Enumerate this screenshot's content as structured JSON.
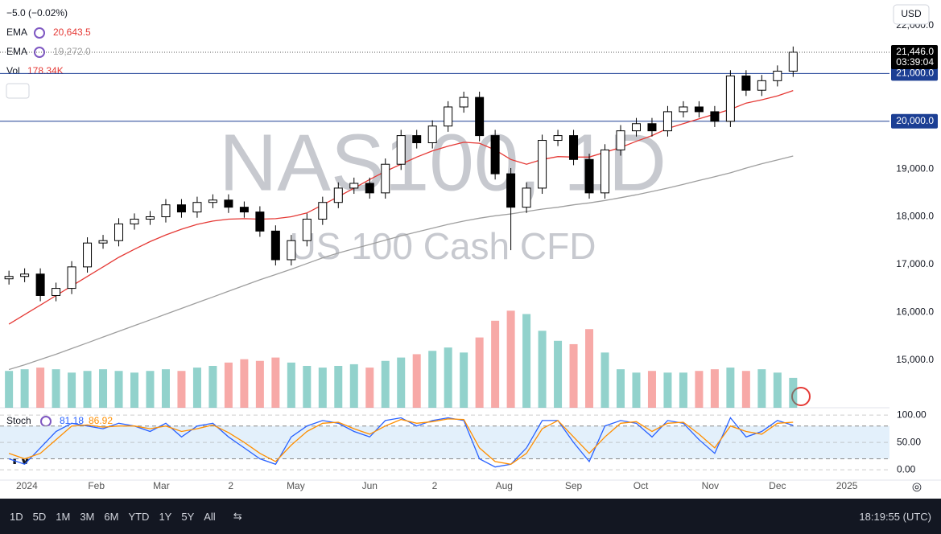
{
  "chart_data": {
    "type": "candlestick",
    "title": "NAS100, 1D",
    "subtitle": "US 100 Cash CFD",
    "change": "−5.0 (−0.02%)",
    "currency": "USD",
    "x": [
      4,
      11,
      18,
      25,
      32,
      39,
      46,
      53,
      60,
      67,
      74,
      81,
      88,
      95,
      102,
      109,
      116,
      123,
      130,
      137,
      144,
      151,
      158,
      165,
      172,
      179,
      186,
      193,
      200,
      207,
      214,
      221,
      228,
      235,
      242,
      249,
      256,
      263,
      270,
      277,
      284,
      291,
      298,
      305,
      312,
      319,
      326,
      333,
      340,
      347,
      354
    ],
    "xlim": [
      0,
      397
    ],
    "xticks": [
      {
        "value": 12,
        "label": "2024"
      },
      {
        "value": 43,
        "label": "Feb"
      },
      {
        "value": 72,
        "label": "Mar"
      },
      {
        "value": 103,
        "label": "2"
      },
      {
        "value": 132,
        "label": "May"
      },
      {
        "value": 165,
        "label": "Jun"
      },
      {
        "value": 194,
        "label": "2"
      },
      {
        "value": 225,
        "label": "Aug"
      },
      {
        "value": 256,
        "label": "Sep"
      },
      {
        "value": 286,
        "label": "Oct"
      },
      {
        "value": 317,
        "label": "Nov"
      },
      {
        "value": 347,
        "label": "Dec"
      },
      {
        "value": 378,
        "label": "2025"
      }
    ],
    "open": [
      16700,
      16750,
      16800,
      16350,
      16500,
      16950,
      17450,
      17500,
      17850,
      17950,
      18000,
      18250,
      18100,
      18300,
      18350,
      18200,
      18100,
      17700,
      17100,
      17500,
      17950,
      18300,
      18600,
      18700,
      18500,
      19100,
      19700,
      19550,
      19900,
      20300,
      20500,
      19700,
      18900,
      18200,
      18600,
      19600,
      19700,
      19200,
      18500,
      19400,
      19800,
      19950,
      19800,
      20200,
      20300,
      20200,
      20000,
      20950,
      20650,
      20850,
      21050
    ],
    "high": [
      16870,
      16920,
      16920,
      16620,
      17070,
      17570,
      17620,
      17970,
      18070,
      18120,
      18370,
      18370,
      18420,
      18470,
      18470,
      18320,
      18220,
      17820,
      17620,
      18070,
      18420,
      18720,
      18820,
      18820,
      19220,
      19820,
      19820,
      20020,
      20420,
      20620,
      20620,
      19820,
      19020,
      18720,
      19720,
      19820,
      19820,
      19320,
      19520,
      19920,
      20070,
      20070,
      20320,
      20420,
      20420,
      20320,
      21070,
      21070,
      20970,
      21170,
      21566
    ],
    "low": [
      16580,
      16630,
      16230,
      16230,
      16380,
      16830,
      17330,
      17380,
      17730,
      17830,
      17880,
      17980,
      17980,
      18180,
      18080,
      17980,
      17580,
      16980,
      16980,
      17380,
      17830,
      18180,
      18480,
      18380,
      18380,
      18980,
      19430,
      19430,
      19780,
      20180,
      19580,
      18780,
      17300,
      18080,
      18480,
      19480,
      19080,
      18380,
      18380,
      19280,
      19680,
      19680,
      19680,
      20080,
      20080,
      19880,
      19880,
      20530,
      20530,
      20730,
      20930
    ],
    "close": [
      16750,
      16800,
      16350,
      16500,
      16950,
      17450,
      17500,
      17850,
      17950,
      18000,
      18250,
      18100,
      18300,
      18350,
      18200,
      18100,
      17700,
      17100,
      17500,
      17950,
      18300,
      18600,
      18700,
      18500,
      19100,
      19700,
      19550,
      19900,
      20300,
      20500,
      19700,
      18900,
      18200,
      18600,
      19600,
      19700,
      19200,
      18500,
      19400,
      19800,
      19950,
      19800,
      20200,
      20300,
      20200,
      20000,
      20950,
      20650,
      20850,
      21050,
      21446
    ],
    "up_color": "#ffffff",
    "down_color": "#000000",
    "ylim": [
      14000,
      22540
    ],
    "yticks": [
      {
        "value": 15000,
        "label": "15,000.0"
      },
      {
        "value": 16000,
        "label": "16,000.0"
      },
      {
        "value": 17000,
        "label": "17,000.0"
      },
      {
        "value": 18000,
        "label": "18,000.0"
      },
      {
        "value": 19000,
        "label": "19,000.0"
      },
      {
        "value": 22000,
        "label": "22,000.0"
      }
    ],
    "horizontal_lines": [
      {
        "value": 21000,
        "label": "21,000.0"
      },
      {
        "value": 20000,
        "label": "20,000.0"
      }
    ],
    "line_color": "#1c3f94",
    "last_price": {
      "value": 21446,
      "label": "21,446.0"
    },
    "countdown": "03:39:04",
    "ema": [
      {
        "name": "EMA",
        "color": "#e53935",
        "current_label": "20,643.5",
        "values": [
          15750,
          15950,
          16150,
          16350,
          16550,
          16750,
          16950,
          17150,
          17320,
          17480,
          17620,
          17740,
          17840,
          17910,
          17950,
          17960,
          17950,
          17960,
          18000,
          18080,
          18250,
          18420,
          18600,
          18780,
          18950,
          19100,
          19250,
          19380,
          19480,
          19560,
          19540,
          19400,
          19200,
          19100,
          19200,
          19260,
          19250,
          19250,
          19350,
          19450,
          19580,
          19700,
          19850,
          19950,
          20050,
          20150,
          20250,
          20380,
          20450,
          20530,
          20643.5
        ]
      },
      {
        "name": "EMA",
        "color": "#9e9e9e",
        "current_label": "19,272.0",
        "values": [
          14800,
          14900,
          15010,
          15120,
          15240,
          15360,
          15480,
          15600,
          15720,
          15840,
          15960,
          16080,
          16200,
          16320,
          16440,
          16560,
          16680,
          16790,
          16900,
          17020,
          17140,
          17240,
          17330,
          17420,
          17510,
          17600,
          17680,
          17760,
          17840,
          17910,
          17970,
          18020,
          18060,
          18110,
          18160,
          18200,
          18250,
          18290,
          18340,
          18400,
          18460,
          18530,
          18600,
          18680,
          18760,
          18840,
          18920,
          19020,
          19110,
          19190,
          19272
        ]
      }
    ],
    "volume": {
      "name": "Vol",
      "current_label": "178.34K",
      "label_color": "#e53935",
      "ylim": [
        0,
        2437
      ],
      "up_color": "rgba(38,166,154,0.5)",
      "down_color": "rgba(239,83,80,0.5)",
      "values": [
        220,
        230,
        240,
        230,
        210,
        220,
        230,
        220,
        210,
        220,
        230,
        220,
        240,
        250,
        270,
        290,
        280,
        300,
        270,
        250,
        240,
        250,
        260,
        240,
        280,
        300,
        320,
        340,
        360,
        330,
        420,
        520,
        580,
        560,
        460,
        400,
        380,
        470,
        330,
        230,
        210,
        220,
        210,
        210,
        220,
        230,
        240,
        220,
        230,
        210,
        178.34
      ]
    },
    "stoch": {
      "name": "Stoch",
      "ylim": [
        -19,
        112
      ],
      "band": [
        20,
        80
      ],
      "band_color": "#e3f0fb",
      "yticks": [
        {
          "value": 100,
          "label": "100.00"
        },
        {
          "value": 50,
          "label": "50.00"
        },
        {
          "value": 0,
          "label": "0.00"
        }
      ],
      "series": [
        {
          "color": "#2962ff",
          "current_label": "81.18",
          "values": [
            20,
            10,
            40,
            70,
            85,
            80,
            75,
            85,
            80,
            70,
            85,
            60,
            80,
            85,
            60,
            40,
            20,
            10,
            60,
            80,
            90,
            85,
            70,
            60,
            90,
            95,
            80,
            90,
            95,
            90,
            20,
            5,
            10,
            40,
            90,
            90,
            50,
            15,
            80,
            90,
            85,
            60,
            90,
            85,
            55,
            30,
            95,
            60,
            70,
            90,
            81.18
          ]
        },
        {
          "color": "#ff8f00",
          "current_label": "86.92",
          "values": [
            30,
            20,
            30,
            55,
            80,
            82,
            78,
            80,
            80,
            75,
            80,
            70,
            75,
            82,
            68,
            50,
            30,
            15,
            45,
            70,
            85,
            87,
            75,
            65,
            80,
            92,
            85,
            88,
            93,
            92,
            40,
            15,
            10,
            30,
            75,
            90,
            60,
            30,
            60,
            85,
            88,
            70,
            85,
            87,
            65,
            40,
            80,
            70,
            65,
            85,
            86.92
          ]
        }
      ]
    }
  },
  "toolbar": {
    "ranges": [
      "1D",
      "5D",
      "1M",
      "3M",
      "6M",
      "YTD",
      "1Y",
      "5Y",
      "All"
    ],
    "clock": "18:19:55 (UTC)"
  }
}
